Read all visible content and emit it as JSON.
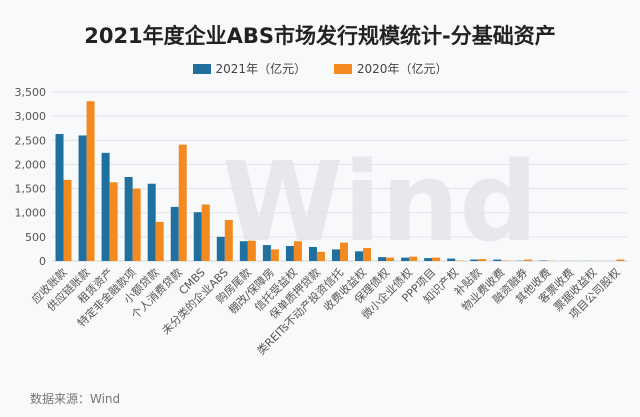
{
  "chart_data": {
    "type": "bar",
    "title": "2021年度企业ABS市场发行规模统计-分基础资产",
    "categories": [
      "应收账款",
      "供应链账款",
      "租赁资产",
      "特定非金融款项",
      "小额贷款",
      "个人消费贷款",
      "CMBS",
      "未分类的企业ABS",
      "购房尾款",
      "棚改/保障房",
      "信托受益权",
      "保单质押贷款",
      "类REITs不动产投资信托",
      "收费收益权",
      "保理债权",
      "微小企业债权",
      "PPP项目",
      "知识产权",
      "补贴款",
      "物业费收费",
      "融资融券",
      "其他收费",
      "客票收费",
      "票据收益权",
      "项目公司股权"
    ],
    "series": [
      {
        "name": "2021年（亿元）",
        "color": "#20709f",
        "values": [
          2630,
          2600,
          2240,
          1740,
          1600,
          1120,
          1010,
          500,
          410,
          330,
          310,
          290,
          240,
          200,
          80,
          70,
          60,
          50,
          30,
          30,
          5,
          10,
          2,
          2,
          0
        ]
      },
      {
        "name": "2020年（亿元）",
        "color": "#f28a1f",
        "values": [
          1680,
          3310,
          1630,
          1500,
          810,
          2410,
          1170,
          850,
          420,
          240,
          410,
          190,
          380,
          270,
          70,
          90,
          70,
          10,
          40,
          10,
          30,
          5,
          2,
          2,
          30
        ]
      }
    ],
    "ylim": [
      0,
      3500
    ],
    "yticks": [
      "0",
      "500",
      "1,000",
      "1,500",
      "2,000",
      "2,500",
      "3,000",
      "3,500"
    ],
    "grid": true,
    "legend": "top",
    "source": "数据来源：Wind",
    "watermark": "Wind"
  }
}
